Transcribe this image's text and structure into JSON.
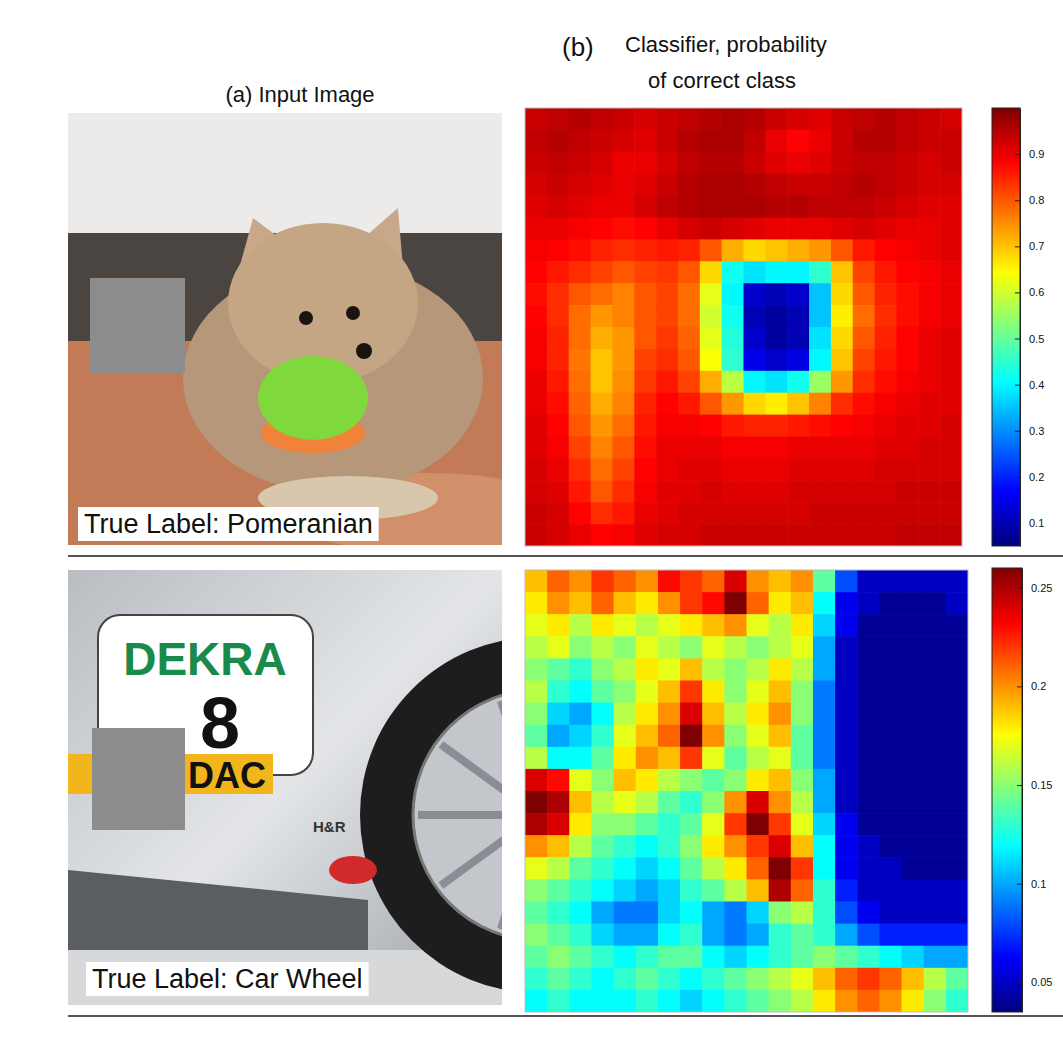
{
  "figure": {
    "panel_a_title": "(a) Input Image",
    "panel_b_label": "(b)",
    "panel_b_title": [
      "Classifier, probability",
      "of correct class"
    ]
  },
  "chart_data": [
    {
      "type": "heatmap",
      "image_caption": "True Label: Pomeranian",
      "tick_labels": false,
      "color_range": [
        0.05,
        1.0
      ],
      "color_ticks": [
        0.1,
        0.2,
        0.3,
        0.4,
        0.5,
        0.6,
        0.7,
        0.8,
        0.9
      ],
      "cells": [
        [
          0.93,
          0.94,
          0.95,
          0.94,
          0.93,
          0.92,
          0.93,
          0.94,
          0.95,
          0.96,
          0.95,
          0.93,
          0.92,
          0.91,
          0.93,
          0.94,
          0.95,
          0.94,
          0.93,
          0.92
        ],
        [
          0.94,
          0.95,
          0.94,
          0.93,
          0.92,
          0.91,
          0.93,
          0.95,
          0.96,
          0.96,
          0.94,
          0.9,
          0.88,
          0.9,
          0.93,
          0.95,
          0.95,
          0.94,
          0.93,
          0.93
        ],
        [
          0.93,
          0.94,
          0.93,
          0.92,
          0.9,
          0.9,
          0.92,
          0.94,
          0.95,
          0.95,
          0.93,
          0.91,
          0.9,
          0.91,
          0.93,
          0.94,
          0.94,
          0.93,
          0.92,
          0.93
        ],
        [
          0.92,
          0.93,
          0.92,
          0.91,
          0.9,
          0.91,
          0.93,
          0.95,
          0.96,
          0.96,
          0.95,
          0.94,
          0.93,
          0.93,
          0.94,
          0.95,
          0.94,
          0.93,
          0.92,
          0.92
        ],
        [
          0.91,
          0.92,
          0.91,
          0.9,
          0.9,
          0.92,
          0.94,
          0.95,
          0.96,
          0.96,
          0.96,
          0.95,
          0.95,
          0.94,
          0.94,
          0.94,
          0.93,
          0.92,
          0.91,
          0.91
        ],
        [
          0.9,
          0.9,
          0.89,
          0.88,
          0.87,
          0.88,
          0.9,
          0.92,
          0.93,
          0.92,
          0.91,
          0.9,
          0.9,
          0.9,
          0.91,
          0.92,
          0.91,
          0.9,
          0.9,
          0.91
        ],
        [
          0.89,
          0.88,
          0.87,
          0.85,
          0.84,
          0.85,
          0.86,
          0.85,
          0.8,
          0.72,
          0.68,
          0.7,
          0.72,
          0.74,
          0.8,
          0.86,
          0.88,
          0.89,
          0.9,
          0.91
        ],
        [
          0.88,
          0.86,
          0.84,
          0.82,
          0.8,
          0.82,
          0.83,
          0.8,
          0.68,
          0.42,
          0.38,
          0.4,
          0.4,
          0.45,
          0.7,
          0.82,
          0.86,
          0.88,
          0.89,
          0.9
        ],
        [
          0.87,
          0.84,
          0.8,
          0.78,
          0.76,
          0.8,
          0.82,
          0.78,
          0.62,
          0.4,
          0.12,
          0.1,
          0.12,
          0.35,
          0.68,
          0.8,
          0.85,
          0.87,
          0.89,
          0.9
        ],
        [
          0.88,
          0.84,
          0.78,
          0.74,
          0.76,
          0.8,
          0.82,
          0.78,
          0.6,
          0.42,
          0.1,
          0.08,
          0.1,
          0.35,
          0.66,
          0.78,
          0.84,
          0.87,
          0.89,
          0.9
        ],
        [
          0.89,
          0.85,
          0.78,
          0.72,
          0.74,
          0.8,
          0.83,
          0.79,
          0.62,
          0.44,
          0.12,
          0.08,
          0.1,
          0.38,
          0.68,
          0.8,
          0.85,
          0.88,
          0.9,
          0.91
        ],
        [
          0.89,
          0.85,
          0.77,
          0.7,
          0.74,
          0.82,
          0.84,
          0.8,
          0.64,
          0.45,
          0.15,
          0.12,
          0.14,
          0.4,
          0.7,
          0.82,
          0.86,
          0.88,
          0.9,
          0.91
        ],
        [
          0.9,
          0.86,
          0.78,
          0.7,
          0.75,
          0.83,
          0.86,
          0.82,
          0.72,
          0.58,
          0.4,
          0.38,
          0.42,
          0.55,
          0.74,
          0.84,
          0.87,
          0.89,
          0.9,
          0.91
        ],
        [
          0.9,
          0.87,
          0.79,
          0.72,
          0.76,
          0.85,
          0.88,
          0.86,
          0.8,
          0.74,
          0.68,
          0.66,
          0.7,
          0.76,
          0.84,
          0.87,
          0.89,
          0.9,
          0.91,
          0.91
        ],
        [
          0.91,
          0.88,
          0.8,
          0.74,
          0.78,
          0.86,
          0.89,
          0.89,
          0.88,
          0.86,
          0.85,
          0.85,
          0.86,
          0.87,
          0.88,
          0.89,
          0.9,
          0.91,
          0.91,
          0.92
        ],
        [
          0.91,
          0.89,
          0.82,
          0.76,
          0.8,
          0.87,
          0.9,
          0.9,
          0.9,
          0.89,
          0.89,
          0.89,
          0.9,
          0.9,
          0.9,
          0.9,
          0.91,
          0.91,
          0.92,
          0.92
        ],
        [
          0.92,
          0.9,
          0.84,
          0.78,
          0.82,
          0.88,
          0.9,
          0.91,
          0.91,
          0.9,
          0.9,
          0.9,
          0.91,
          0.91,
          0.91,
          0.91,
          0.92,
          0.92,
          0.92,
          0.92
        ],
        [
          0.92,
          0.91,
          0.86,
          0.8,
          0.84,
          0.89,
          0.91,
          0.91,
          0.92,
          0.91,
          0.91,
          0.91,
          0.92,
          0.92,
          0.92,
          0.92,
          0.92,
          0.93,
          0.93,
          0.93
        ],
        [
          0.93,
          0.92,
          0.88,
          0.84,
          0.86,
          0.9,
          0.91,
          0.92,
          0.92,
          0.92,
          0.92,
          0.92,
          0.92,
          0.93,
          0.93,
          0.93,
          0.93,
          0.93,
          0.93,
          0.93
        ],
        [
          0.93,
          0.92,
          0.9,
          0.88,
          0.89,
          0.91,
          0.92,
          0.92,
          0.93,
          0.93,
          0.93,
          0.93,
          0.93,
          0.93,
          0.93,
          0.93,
          0.93,
          0.94,
          0.94,
          0.94
        ]
      ]
    },
    {
      "type": "heatmap",
      "image_caption": "True Label: Car Wheel",
      "scene_texts": [
        "DEKRA",
        "8",
        "DAC",
        "H&R"
      ],
      "tick_labels": false,
      "color_range": [
        0.035,
        0.26
      ],
      "color_ticks": [
        0.05,
        0.1,
        0.15,
        0.2,
        0.25
      ],
      "cells": [
        [
          0.19,
          0.21,
          0.2,
          0.22,
          0.21,
          0.2,
          0.23,
          0.22,
          0.21,
          0.24,
          0.2,
          0.19,
          0.2,
          0.14,
          0.08,
          0.05,
          0.05,
          0.05,
          0.05,
          0.05
        ],
        [
          0.18,
          0.2,
          0.19,
          0.21,
          0.19,
          0.18,
          0.2,
          0.22,
          0.23,
          0.27,
          0.21,
          0.18,
          0.19,
          0.12,
          0.06,
          0.05,
          0.04,
          0.04,
          0.04,
          0.05
        ],
        [
          0.17,
          0.18,
          0.16,
          0.18,
          0.17,
          0.16,
          0.17,
          0.18,
          0.19,
          0.2,
          0.17,
          0.16,
          0.18,
          0.11,
          0.06,
          0.04,
          0.04,
          0.04,
          0.04,
          0.04
        ],
        [
          0.16,
          0.17,
          0.15,
          0.16,
          0.15,
          0.17,
          0.16,
          0.15,
          0.17,
          0.16,
          0.15,
          0.16,
          0.17,
          0.1,
          0.05,
          0.04,
          0.04,
          0.04,
          0.04,
          0.04
        ],
        [
          0.15,
          0.14,
          0.13,
          0.15,
          0.16,
          0.18,
          0.17,
          0.19,
          0.16,
          0.15,
          0.16,
          0.18,
          0.16,
          0.1,
          0.05,
          0.04,
          0.04,
          0.04,
          0.04,
          0.04
        ],
        [
          0.16,
          0.13,
          0.12,
          0.14,
          0.15,
          0.17,
          0.19,
          0.22,
          0.18,
          0.15,
          0.17,
          0.19,
          0.15,
          0.09,
          0.05,
          0.04,
          0.04,
          0.04,
          0.04,
          0.04
        ],
        [
          0.15,
          0.11,
          0.1,
          0.12,
          0.16,
          0.18,
          0.2,
          0.24,
          0.19,
          0.16,
          0.18,
          0.2,
          0.15,
          0.09,
          0.05,
          0.04,
          0.04,
          0.04,
          0.04,
          0.04
        ],
        [
          0.14,
          0.1,
          0.11,
          0.13,
          0.17,
          0.19,
          0.21,
          0.26,
          0.2,
          0.15,
          0.17,
          0.19,
          0.14,
          0.09,
          0.05,
          0.04,
          0.04,
          0.04,
          0.04,
          0.04
        ],
        [
          0.16,
          0.12,
          0.12,
          0.14,
          0.18,
          0.2,
          0.19,
          0.22,
          0.17,
          0.14,
          0.16,
          0.17,
          0.14,
          0.09,
          0.05,
          0.04,
          0.04,
          0.04,
          0.04,
          0.04
        ],
        [
          0.24,
          0.23,
          0.17,
          0.15,
          0.19,
          0.18,
          0.16,
          0.15,
          0.14,
          0.15,
          0.18,
          0.19,
          0.15,
          0.1,
          0.05,
          0.04,
          0.04,
          0.04,
          0.04,
          0.04
        ],
        [
          0.26,
          0.25,
          0.19,
          0.16,
          0.17,
          0.16,
          0.14,
          0.13,
          0.15,
          0.2,
          0.24,
          0.2,
          0.16,
          0.1,
          0.05,
          0.04,
          0.04,
          0.04,
          0.04,
          0.04
        ],
        [
          0.25,
          0.24,
          0.18,
          0.15,
          0.15,
          0.14,
          0.13,
          0.14,
          0.17,
          0.22,
          0.26,
          0.22,
          0.17,
          0.11,
          0.06,
          0.04,
          0.04,
          0.04,
          0.04,
          0.04
        ],
        [
          0.2,
          0.19,
          0.16,
          0.14,
          0.13,
          0.12,
          0.13,
          0.15,
          0.18,
          0.2,
          0.22,
          0.24,
          0.19,
          0.12,
          0.06,
          0.05,
          0.04,
          0.04,
          0.04,
          0.04
        ],
        [
          0.17,
          0.16,
          0.14,
          0.13,
          0.12,
          0.11,
          0.12,
          0.14,
          0.16,
          0.18,
          0.21,
          0.27,
          0.22,
          0.12,
          0.06,
          0.05,
          0.05,
          0.04,
          0.04,
          0.04
        ],
        [
          0.15,
          0.14,
          0.13,
          0.12,
          0.11,
          0.1,
          0.11,
          0.13,
          0.14,
          0.16,
          0.19,
          0.25,
          0.21,
          0.13,
          0.07,
          0.05,
          0.05,
          0.05,
          0.05,
          0.05
        ],
        [
          0.14,
          0.13,
          0.12,
          0.1,
          0.09,
          0.09,
          0.11,
          0.12,
          0.1,
          0.09,
          0.11,
          0.15,
          0.16,
          0.13,
          0.08,
          0.06,
          0.05,
          0.05,
          0.05,
          0.05
        ],
        [
          0.15,
          0.14,
          0.13,
          0.11,
          0.1,
          0.1,
          0.12,
          0.13,
          0.1,
          0.09,
          0.1,
          0.13,
          0.14,
          0.13,
          0.1,
          0.08,
          0.07,
          0.07,
          0.07,
          0.07
        ],
        [
          0.14,
          0.15,
          0.14,
          0.13,
          0.12,
          0.13,
          0.14,
          0.14,
          0.12,
          0.11,
          0.12,
          0.13,
          0.14,
          0.15,
          0.14,
          0.13,
          0.12,
          0.11,
          0.1,
          0.1
        ],
        [
          0.13,
          0.14,
          0.13,
          0.12,
          0.13,
          0.14,
          0.13,
          0.12,
          0.13,
          0.14,
          0.15,
          0.16,
          0.17,
          0.19,
          0.21,
          0.22,
          0.21,
          0.19,
          0.16,
          0.14
        ],
        [
          0.12,
          0.13,
          0.12,
          0.12,
          0.12,
          0.13,
          0.12,
          0.11,
          0.12,
          0.13,
          0.14,
          0.15,
          0.16,
          0.18,
          0.2,
          0.21,
          0.2,
          0.18,
          0.15,
          0.13
        ]
      ]
    }
  ]
}
